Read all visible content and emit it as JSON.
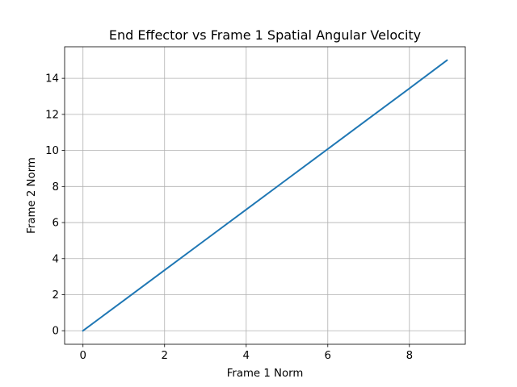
{
  "chart_data": {
    "type": "line",
    "title": "End Effector vs Frame 1 Spatial Angular Velocity",
    "xlabel": "Frame 1 Norm",
    "ylabel": "Frame 2 Norm",
    "xlim": [
      -0.45,
      9.37
    ],
    "ylim": [
      -0.75,
      15.75
    ],
    "xticks": [
      0,
      2,
      4,
      6,
      8
    ],
    "yticks": [
      0,
      2,
      4,
      6,
      8,
      10,
      12,
      14
    ],
    "grid": true,
    "series": [
      {
        "color": "#1f77b4",
        "x": [
          0,
          1,
          2,
          3,
          4,
          5,
          6,
          7,
          8,
          8.92
        ],
        "y": [
          0,
          1.68,
          3.36,
          5.04,
          6.72,
          8.4,
          10.08,
          11.76,
          13.44,
          15.0
        ]
      }
    ]
  }
}
